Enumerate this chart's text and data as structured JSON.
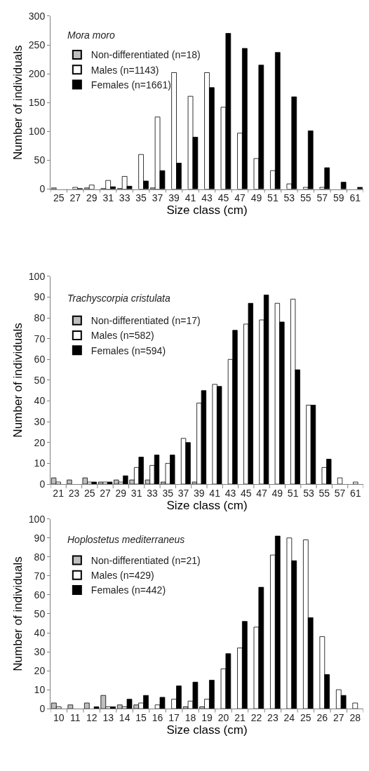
{
  "chart_data": [
    {
      "type": "bar",
      "title": "Mora moro",
      "xlabel": "Size class (cm)",
      "ylabel": "Number of individuals",
      "legend": "top left",
      "ylim": [
        0,
        300
      ],
      "yticks": [
        0,
        50,
        100,
        150,
        200,
        250,
        300
      ],
      "categories": [
        "25",
        "27",
        "29",
        "31",
        "33",
        "35",
        "37",
        "39",
        "41",
        "43",
        "45",
        "47",
        "49",
        "51",
        "53",
        "55",
        "57",
        "59",
        "61"
      ],
      "series": [
        {
          "name": "Non-differentiated (n=18)",
          "color": "#bfbfbf",
          "values": [
            2,
            0,
            2,
            1,
            1,
            0,
            2,
            0,
            0,
            0,
            0,
            0,
            0,
            0,
            0,
            0,
            0,
            0,
            0
          ]
        },
        {
          "name": "Males (n=1143)",
          "color": "#ffffff",
          "values": [
            null,
            3,
            7,
            15,
            22,
            60,
            125,
            202,
            161,
            202,
            142,
            97,
            53,
            32,
            9,
            3,
            3,
            null,
            null
          ]
        },
        {
          "name": "Females (n=1661)",
          "color": "#000000",
          "values": [
            0,
            1,
            0,
            4,
            5,
            14,
            32,
            45,
            90,
            176,
            270,
            244,
            215,
            237,
            160,
            101,
            37,
            12,
            3
          ]
        }
      ]
    },
    {
      "type": "bar",
      "title": "Trachyscorpia cristulata",
      "xlabel": "Size class (cm)",
      "ylabel": "Number of individuals",
      "legend": "top left",
      "ylim": [
        0,
        100
      ],
      "yticks": [
        0,
        10,
        20,
        30,
        40,
        50,
        60,
        70,
        80,
        90,
        100
      ],
      "categories": [
        "21",
        "23",
        "25",
        "27",
        "29",
        "31",
        "33",
        "35",
        "37",
        "39",
        "41",
        "43",
        "45",
        "47",
        "49",
        "51",
        "53",
        "55",
        "57",
        "61"
      ],
      "series": [
        {
          "name": "Non-differentiated (n=17)",
          "color": "#bfbfbf",
          "values": [
            3,
            2,
            3,
            1,
            2,
            2,
            2,
            1,
            0,
            1,
            0,
            0,
            0,
            0,
            0,
            0,
            0,
            0,
            0,
            0
          ]
        },
        {
          "name": "Males (n=582)",
          "color": "#ffffff",
          "values": [
            1,
            0,
            1,
            1,
            1,
            8,
            9,
            10,
            22,
            39,
            48,
            60,
            77,
            79,
            87,
            89,
            38,
            8,
            3,
            1
          ]
        },
        {
          "name": "Females (n=594)",
          "color": "#000000",
          "values": [
            0,
            0,
            1,
            1,
            4,
            13,
            14,
            14,
            20,
            45,
            47,
            74,
            87,
            91,
            78,
            55,
            38,
            12,
            0,
            0
          ]
        }
      ]
    },
    {
      "type": "bar",
      "title": "Hoplostetus mediterraneus",
      "xlabel": "Size class (cm)",
      "ylabel": "Number of individuals",
      "legend": "top left",
      "ylim": [
        0,
        100
      ],
      "yticks": [
        0,
        10,
        20,
        30,
        40,
        50,
        60,
        70,
        80,
        90,
        100
      ],
      "categories": [
        "10",
        "11",
        "12",
        "13",
        "14",
        "15",
        "16",
        "17",
        "18",
        "19",
        "20",
        "21",
        "22",
        "23",
        "24",
        "25",
        "26",
        "27",
        "28"
      ],
      "series": [
        {
          "name": "Non-differentiated (n=21)",
          "color": "#bfbfbf",
          "values": [
            3,
            2,
            3,
            7,
            2,
            2,
            0,
            0,
            1,
            1,
            0,
            0,
            0,
            0,
            0,
            0,
            0,
            0,
            0
          ]
        },
        {
          "name": "Males (n=429)",
          "color": "#ffffff",
          "values": [
            1,
            0,
            0,
            1,
            1,
            3,
            2,
            5,
            4,
            5,
            21,
            32,
            43,
            81,
            90,
            89,
            38,
            10,
            3
          ]
        },
        {
          "name": "Females (n=442)",
          "color": "#000000",
          "values": [
            0,
            0,
            1,
            1,
            5,
            7,
            6,
            12,
            14,
            15,
            29,
            46,
            64,
            91,
            78,
            48,
            18,
            7,
            0
          ]
        }
      ]
    }
  ]
}
